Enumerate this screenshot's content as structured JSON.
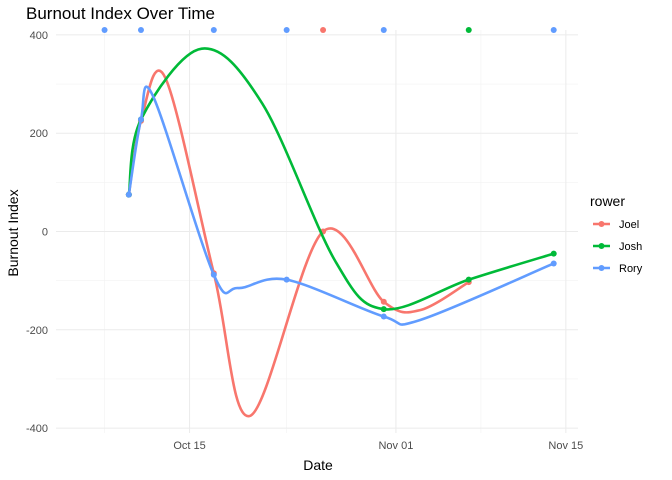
{
  "chart_data": {
    "type": "line",
    "title": "Burnout Index Over Time",
    "xlabel": "Date",
    "ylabel": "Burnout Index",
    "x_type": "date",
    "xlim": [
      "2024-10-04",
      "2024-11-16"
    ],
    "ylim": [
      -410,
      410
    ],
    "x_ticks": [
      {
        "value": "2024-10-15",
        "label": "Oct 15"
      },
      {
        "value": "2024-11-01",
        "label": "Nov 01"
      },
      {
        "value": "2024-11-15",
        "label": "Nov 15"
      }
    ],
    "x_minor_ticks": [
      "2024-10-08",
      "2024-10-23",
      "2024-11-08"
    ],
    "y_ticks": [
      -400,
      -200,
      0,
      200,
      400
    ],
    "y_minor_ticks": [
      -300,
      -100,
      100,
      300
    ],
    "grid": true,
    "legend": {
      "title": "rower",
      "position": "right"
    },
    "series": [
      {
        "name": "Joel",
        "color": "#F8766D",
        "points": [
          {
            "x": "2024-10-10",
            "y": 75
          },
          {
            "x": "2024-10-11",
            "y": 225
          },
          {
            "x": "2024-10-13",
            "y": 313
          },
          {
            "x": "2024-10-17",
            "y": -85
          },
          {
            "x": "2024-10-20",
            "y": -375
          },
          {
            "x": "2024-10-26",
            "y": 0
          },
          {
            "x": "2024-10-31",
            "y": -143
          },
          {
            "x": "2024-11-03",
            "y": -160
          },
          {
            "x": "2024-11-07",
            "y": -103
          }
        ],
        "markers": [
          {
            "x": "2024-10-10",
            "y": 75
          },
          {
            "x": "2024-10-11",
            "y": 225
          },
          {
            "x": "2024-10-17",
            "y": -85
          },
          {
            "x": "2024-10-26",
            "y": 0
          },
          {
            "x": "2024-10-31",
            "y": -143
          },
          {
            "x": "2024-11-07",
            "y": -103
          }
        ],
        "top_markers": [
          "2024-10-26"
        ]
      },
      {
        "name": "Josh",
        "color": "#00BA38",
        "points": [
          {
            "x": "2024-10-10",
            "y": 75
          },
          {
            "x": "2024-10-11",
            "y": 228
          },
          {
            "x": "2024-10-16",
            "y": 372
          },
          {
            "x": "2024-10-21",
            "y": 260
          },
          {
            "x": "2024-10-27",
            "y": -60
          },
          {
            "x": "2024-10-31",
            "y": -158
          },
          {
            "x": "2024-11-07",
            "y": -98
          },
          {
            "x": "2024-11-14",
            "y": -45
          }
        ],
        "markers": [
          {
            "x": "2024-10-10",
            "y": 75
          },
          {
            "x": "2024-10-11",
            "y": 228
          },
          {
            "x": "2024-10-31",
            "y": -158
          },
          {
            "x": "2024-11-07",
            "y": -98
          },
          {
            "x": "2024-11-14",
            "y": -45
          }
        ],
        "top_markers": [
          "2024-11-07"
        ]
      },
      {
        "name": "Rory",
        "color": "#619CFF",
        "points": [
          {
            "x": "2024-10-10",
            "y": 75
          },
          {
            "x": "2024-10-11",
            "y": 228
          },
          {
            "x": "2024-10-12",
            "y": 275
          },
          {
            "x": "2024-10-17",
            "y": -88
          },
          {
            "x": "2024-10-19",
            "y": -115
          },
          {
            "x": "2024-10-23",
            "y": -98
          },
          {
            "x": "2024-10-31",
            "y": -173
          },
          {
            "x": "2024-11-03",
            "y": -180
          },
          {
            "x": "2024-11-14",
            "y": -65
          }
        ],
        "markers": [
          {
            "x": "2024-10-10",
            "y": 75
          },
          {
            "x": "2024-10-11",
            "y": 228
          },
          {
            "x": "2024-10-17",
            "y": -88
          },
          {
            "x": "2024-10-23",
            "y": -98
          },
          {
            "x": "2024-10-31",
            "y": -173
          },
          {
            "x": "2024-11-14",
            "y": -65
          }
        ],
        "top_markers": [
          "2024-10-08",
          "2024-10-11",
          "2024-10-17",
          "2024-10-23",
          "2024-10-31",
          "2024-11-14"
        ]
      }
    ]
  }
}
